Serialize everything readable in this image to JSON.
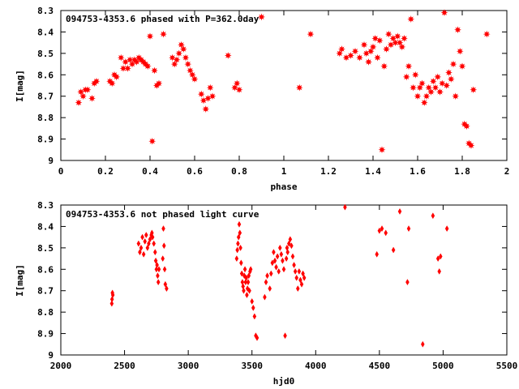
{
  "chart_data": [
    {
      "type": "scatter",
      "title": "094753-4353.6 phased with P=362.0day",
      "xlabel": "phase",
      "ylabel": "I[mag]",
      "xlim": [
        0,
        2
      ],
      "ylim": [
        9,
        8.3
      ],
      "y_inverted": true,
      "grid": false,
      "marker_color": "#ff0000",
      "marker": "star",
      "xticks": [
        "0",
        "0.2",
        "0.4",
        "0.6",
        "0.8",
        "1",
        "1.2",
        "1.4",
        "1.6",
        "1.8",
        "2"
      ],
      "yticks": [
        "8.3",
        "8.4",
        "8.5",
        "8.6",
        "8.7",
        "8.8",
        "8.9",
        "9"
      ],
      "series": [
        {
          "x": [
            0.08,
            0.09,
            0.1,
            0.11,
            0.12,
            0.14,
            0.15,
            0.16,
            0.22,
            0.23,
            0.24,
            0.25,
            0.27,
            0.28,
            0.29,
            0.3,
            0.31,
            0.32,
            0.33,
            0.34,
            0.35,
            0.36,
            0.37,
            0.38,
            0.39,
            0.4,
            0.41,
            0.42,
            0.43,
            0.44,
            0.46,
            0.5,
            0.51,
            0.52,
            0.53,
            0.54,
            0.55,
            0.56,
            0.57,
            0.58,
            0.59,
            0.6,
            0.63,
            0.64,
            0.65,
            0.66,
            0.67,
            0.68,
            0.75,
            0.78,
            0.79,
            0.8,
            0.9,
            1.07,
            1.12,
            1.25,
            1.26,
            1.28,
            1.3,
            1.32,
            1.34,
            1.36,
            1.37,
            1.38,
            1.39,
            1.4,
            1.41,
            1.42,
            1.43,
            1.44,
            1.45,
            1.46,
            1.47,
            1.48,
            1.49,
            1.5,
            1.51,
            1.52,
            1.53,
            1.54,
            1.55,
            1.56,
            1.57,
            1.58,
            1.59,
            1.6,
            1.61,
            1.62,
            1.63,
            1.64,
            1.65,
            1.66,
            1.67,
            1.68,
            1.69,
            1.7,
            1.71,
            1.72,
            1.73,
            1.74,
            1.75,
            1.76,
            1.77,
            1.78,
            1.79,
            1.8,
            1.81,
            1.82,
            1.83,
            1.84,
            1.85,
            1.91
          ],
          "y": [
            8.73,
            8.68,
            8.7,
            8.67,
            8.67,
            8.71,
            8.64,
            8.63,
            8.63,
            8.64,
            8.6,
            8.61,
            8.52,
            8.57,
            8.54,
            8.57,
            8.53,
            8.55,
            8.53,
            8.54,
            8.52,
            8.53,
            8.54,
            8.55,
            8.56,
            8.42,
            8.91,
            8.58,
            8.65,
            8.64,
            8.41,
            8.52,
            8.55,
            8.53,
            8.5,
            8.46,
            8.48,
            8.52,
            8.55,
            8.58,
            8.6,
            8.62,
            8.69,
            8.72,
            8.76,
            8.71,
            8.66,
            8.7,
            8.51,
            8.66,
            8.64,
            8.67,
            8.33,
            8.66,
            8.41,
            8.5,
            8.48,
            8.52,
            8.51,
            8.49,
            8.52,
            8.46,
            8.5,
            8.54,
            8.49,
            8.47,
            8.43,
            8.52,
            8.44,
            8.95,
            8.56,
            8.48,
            8.41,
            8.46,
            8.43,
            8.45,
            8.42,
            8.45,
            8.47,
            8.43,
            8.61,
            8.56,
            8.34,
            8.66,
            8.6,
            8.7,
            8.66,
            8.64,
            8.73,
            8.7,
            8.66,
            8.68,
            8.63,
            8.66,
            8.61,
            8.68,
            8.64,
            8.31,
            8.65,
            8.59,
            8.62,
            8.55,
            8.7,
            8.39,
            8.49,
            8.56,
            8.83,
            8.84,
            8.92,
            8.93,
            8.67,
            8.41
          ]
        }
      ]
    },
    {
      "type": "scatter",
      "title": "094753-4353.6 not phased light curve",
      "xlabel": "hjd0",
      "ylabel": "I[mag]",
      "xlim": [
        2000,
        5500
      ],
      "ylim": [
        9,
        8.3
      ],
      "y_inverted": true,
      "grid": false,
      "marker_color": "#ff0000",
      "marker": "diamond",
      "xticks": [
        "2000",
        "2500",
        "3000",
        "3500",
        "4000",
        "4500",
        "5000",
        "5500"
      ],
      "yticks": [
        "8.3",
        "8.4",
        "8.5",
        "8.6",
        "8.7",
        "8.8",
        "8.9",
        "9"
      ],
      "series": [
        {
          "x": [
            2400,
            2402,
            2405,
            2408,
            2610,
            2620,
            2630,
            2640,
            2650,
            2660,
            2670,
            2680,
            2690,
            2700,
            2710,
            2715,
            2720,
            2730,
            2740,
            2745,
            2750,
            2755,
            2760,
            2765,
            2770,
            2800,
            2805,
            2810,
            2815,
            2820,
            2830,
            3380,
            3385,
            3390,
            3395,
            3400,
            3405,
            3410,
            3415,
            3420,
            3425,
            3430,
            3435,
            3440,
            3445,
            3450,
            3455,
            3460,
            3465,
            3470,
            3475,
            3480,
            3485,
            3490,
            3500,
            3510,
            3520,
            3530,
            3540,
            3600,
            3610,
            3620,
            3640,
            3650,
            3660,
            3670,
            3680,
            3690,
            3700,
            3710,
            3720,
            3730,
            3740,
            3750,
            3760,
            3770,
            3775,
            3780,
            3790,
            3800,
            3810,
            3820,
            3830,
            3840,
            3850,
            3860,
            3870,
            3880,
            3890,
            3900,
            3910,
            4230,
            4480,
            4500,
            4520,
            4550,
            4610,
            4660,
            4720,
            4730,
            4840,
            4920,
            4960,
            4970,
            4980,
            5030
          ],
          "y": [
            8.76,
            8.74,
            8.71,
            8.72,
            8.48,
            8.52,
            8.5,
            8.45,
            8.53,
            8.47,
            8.44,
            8.5,
            8.48,
            8.46,
            8.44,
            8.43,
            8.45,
            8.48,
            8.52,
            8.56,
            8.6,
            8.58,
            8.63,
            8.66,
            8.6,
            8.55,
            8.41,
            8.49,
            8.6,
            8.67,
            8.69,
            8.55,
            8.51,
            8.48,
            8.45,
            8.39,
            8.43,
            8.5,
            8.57,
            8.62,
            8.66,
            8.68,
            8.7,
            8.63,
            8.6,
            8.66,
            8.64,
            8.72,
            8.69,
            8.66,
            8.63,
            8.7,
            8.61,
            8.6,
            8.75,
            8.78,
            8.82,
            8.91,
            8.92,
            8.73,
            8.66,
            8.63,
            8.69,
            8.62,
            8.57,
            8.52,
            8.56,
            8.59,
            8.54,
            8.61,
            8.5,
            8.53,
            8.56,
            8.6,
            8.91,
            8.55,
            8.5,
            8.52,
            8.48,
            8.46,
            8.49,
            8.54,
            8.58,
            8.61,
            8.64,
            8.69,
            8.61,
            8.65,
            8.67,
            8.62,
            8.64,
            8.31,
            8.53,
            8.42,
            8.41,
            8.43,
            8.51,
            8.33,
            8.66,
            8.41,
            8.95,
            8.35,
            8.55,
            8.61,
            8.54,
            8.41
          ]
        }
      ]
    }
  ]
}
